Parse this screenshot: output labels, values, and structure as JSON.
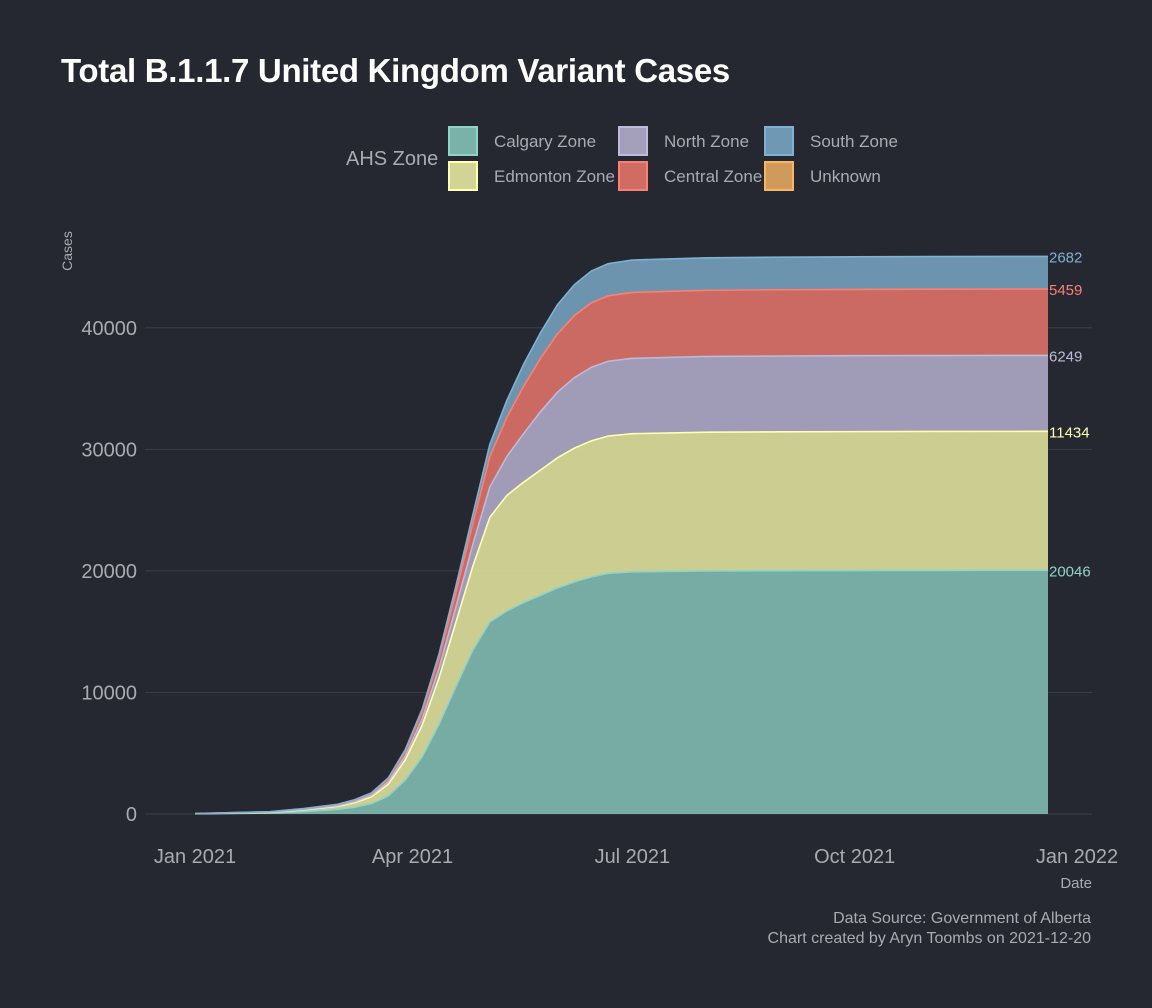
{
  "title": "Total B.1.1.7 United Kingdom Variant Cases",
  "legend": {
    "title": "AHS Zone",
    "items": [
      {
        "label": "Calgary Zone",
        "fill": "#7ab1a9",
        "border": "#8fd3c7"
      },
      {
        "label": "Edmonton Zone",
        "fill": "#d2d495",
        "border": "#ffffb3"
      },
      {
        "label": "North Zone",
        "fill": "#a49fbb",
        "border": "#bebada"
      },
      {
        "label": "Central Zone",
        "fill": "#d16c64",
        "border": "#fb8072"
      },
      {
        "label": "South Zone",
        "fill": "#6e98b4",
        "border": "#80b1d3"
      },
      {
        "label": "Unknown",
        "fill": "#cf9a5c",
        "border": "#fdb462"
      }
    ]
  },
  "source_line1": "Data Source: Government of Alberta",
  "source_line2": "Chart created by Aryn Toombs on 2021-12-20",
  "chart_data": {
    "type": "area",
    "stacked": true,
    "xlabel": "Date",
    "ylabel": "Cases",
    "x_ticks": [
      "Jan 2021",
      "Apr 2021",
      "Jul 2021",
      "Oct 2021",
      "Jan 2022"
    ],
    "y_ticks": [
      0,
      10000,
      20000,
      30000,
      40000
    ],
    "ylim": [
      0,
      48000
    ],
    "grid": true,
    "legend_position": "top",
    "x": [
      "2021-01-01",
      "2021-02-01",
      "2021-02-15",
      "2021-03-01",
      "2021-03-08",
      "2021-03-15",
      "2021-03-22",
      "2021-03-29",
      "2021-04-05",
      "2021-04-12",
      "2021-04-19",
      "2021-04-26",
      "2021-05-03",
      "2021-05-10",
      "2021-05-17",
      "2021-05-24",
      "2021-05-31",
      "2021-06-07",
      "2021-06-14",
      "2021-06-21",
      "2021-07-01",
      "2021-08-01",
      "2021-09-01",
      "2021-10-01",
      "2021-11-01",
      "2021-12-01",
      "2021-12-20"
    ],
    "series": [
      {
        "name": "Calgary Zone",
        "values": [
          15,
          80,
          200,
          380,
          560,
          850,
          1500,
          2800,
          4700,
          7400,
          10500,
          13500,
          15800,
          16700,
          17400,
          18000,
          18600,
          19100,
          19500,
          19800,
          19920,
          20000,
          20020,
          20030,
          20040,
          20045,
          20046
        ]
      },
      {
        "name": "Edmonton Zone",
        "values": [
          10,
          60,
          140,
          250,
          370,
          560,
          950,
          1650,
          2600,
          3800,
          5300,
          6900,
          8600,
          9500,
          9900,
          10300,
          10700,
          11000,
          11200,
          11300,
          11370,
          11410,
          11420,
          11428,
          11432,
          11434,
          11434
        ]
      },
      {
        "name": "North Zone",
        "values": [
          3,
          20,
          40,
          60,
          90,
          120,
          200,
          320,
          520,
          800,
          1250,
          1800,
          2500,
          3200,
          4000,
          4800,
          5400,
          5800,
          6050,
          6150,
          6200,
          6230,
          6240,
          6245,
          6248,
          6249,
          6249
        ]
      },
      {
        "name": "Central Zone",
        "values": [
          5,
          25,
          50,
          80,
          110,
          150,
          230,
          380,
          580,
          850,
          1200,
          1700,
          2500,
          3200,
          3900,
          4400,
          4800,
          5100,
          5300,
          5380,
          5420,
          5445,
          5452,
          5456,
          5458,
          5459,
          5459
        ]
      },
      {
        "name": "South Zone",
        "values": [
          2,
          10,
          20,
          30,
          45,
          60,
          90,
          140,
          220,
          330,
          520,
          750,
          1000,
          1400,
          1800,
          2100,
          2400,
          2550,
          2620,
          2650,
          2668,
          2676,
          2679,
          2681,
          2682,
          2682,
          2682
        ]
      },
      {
        "name": "Unknown",
        "values": [
          0,
          0,
          0,
          0,
          0,
          0,
          0,
          0,
          0,
          0,
          0,
          0,
          0,
          0,
          0,
          0,
          0,
          0,
          0,
          0,
          0,
          0,
          0,
          0,
          0,
          0,
          0
        ]
      }
    ],
    "end_labels": [
      {
        "text": "2682",
        "color": "#80b1d3"
      },
      {
        "text": "5459",
        "color": "#fb8072"
      },
      {
        "text": "6249",
        "color": "#bebada"
      },
      {
        "text": "11434",
        "color": "#ffffb3"
      },
      {
        "text": "20046",
        "color": "#8fd3c7"
      }
    ]
  }
}
